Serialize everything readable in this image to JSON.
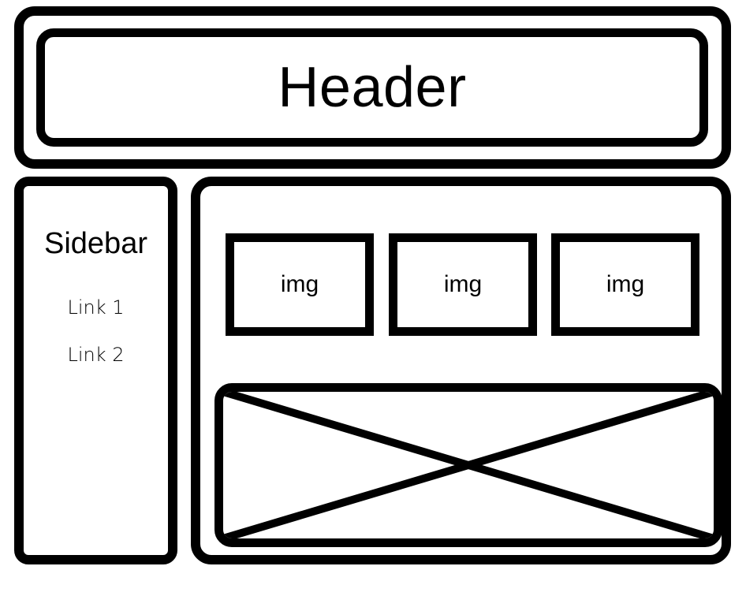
{
  "header": {
    "title": "Header"
  },
  "sidebar": {
    "title": "Sidebar",
    "links": [
      "Link 1",
      "Link 2"
    ]
  },
  "main": {
    "images": [
      "img",
      "img",
      "img"
    ]
  }
}
